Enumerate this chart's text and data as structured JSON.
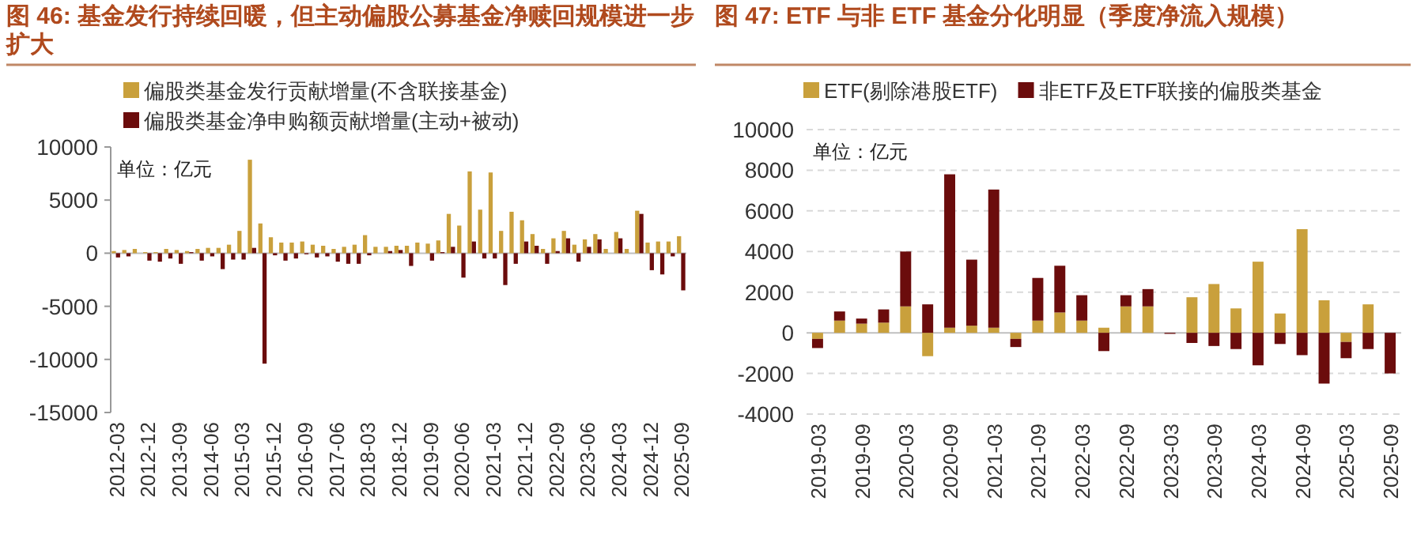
{
  "chart_data": [
    {
      "type": "bar",
      "title": "图 46: 基金发行持续回暖，但主动偏股公募基金净赎回规模进一步扩大",
      "categories": [
        "2012-03",
        null,
        null,
        "2012-12",
        null,
        null,
        "2013-09",
        null,
        null,
        "2014-06",
        null,
        null,
        "2015-03",
        null,
        null,
        "2015-12",
        null,
        null,
        "2016-09",
        null,
        null,
        "2017-06",
        null,
        null,
        "2018-03",
        null,
        null,
        "2018-12",
        null,
        null,
        "2019-09",
        null,
        null,
        "2020-06",
        null,
        null,
        "2021-03",
        null,
        null,
        "2021-12",
        null,
        null,
        "2022-09",
        null,
        null,
        "2023-06",
        null,
        null,
        "2024-03",
        null,
        null,
        "2024-12",
        null,
        null,
        "2025-09"
      ],
      "series": [
        {
          "name": "偏股类基金发行贡献增量(不含联接基金)",
          "color": "#c9a03c",
          "values": [
            200,
            300,
            400,
            100,
            100,
            400,
            300,
            200,
            400,
            500,
            500,
            800,
            2100,
            8800,
            2800,
            1500,
            1000,
            1000,
            1100,
            800,
            700,
            400,
            600,
            800,
            1700,
            600,
            600,
            700,
            700,
            1000,
            900,
            1200,
            3700,
            2600,
            7700,
            4100,
            7600,
            2100,
            3900,
            3100,
            1800,
            400,
            1400,
            2100,
            800,
            1300,
            1800,
            400,
            2000,
            400,
            4000,
            1000,
            1100,
            1100,
            1600
          ]
        },
        {
          "name": "偏股类基金净申购额贡献增量(主动+被动)",
          "color": "#6b0c0c",
          "values": [
            -400,
            -300,
            0,
            -700,
            -800,
            -500,
            -1000,
            100,
            -700,
            -300,
            -1500,
            -600,
            -600,
            500,
            -10400,
            -200,
            -700,
            -500,
            -100,
            -400,
            -300,
            -800,
            -1000,
            -1000,
            -200,
            0,
            200,
            300,
            -1200,
            0,
            -700,
            100,
            600,
            -2300,
            1100,
            -500,
            -500,
            -3000,
            -1000,
            1100,
            700,
            -1000,
            200,
            1400,
            -800,
            600,
            1300,
            0,
            1400,
            0,
            3700,
            -1600,
            -2000,
            -300,
            -3500
          ]
        }
      ],
      "ylim": [
        -15000,
        10000
      ],
      "yticks": [
        -15000,
        -10000,
        -5000,
        0,
        5000,
        10000
      ],
      "legend": "top",
      "annotations": [
        "单位：亿元"
      ]
    },
    {
      "type": "bar",
      "title": "图 47: ETF 与非 ETF 基金分化明显（季度净流入规模）",
      "stacked": true,
      "categories": [
        "2019-03",
        null,
        "2019-09",
        null,
        "2020-03",
        null,
        "2020-09",
        null,
        "2021-03",
        null,
        "2021-09",
        null,
        "2022-03",
        null,
        "2022-09",
        null,
        "2023-03",
        null,
        "2023-09",
        null,
        "2024-03",
        null,
        "2024-09",
        null,
        "2025-03",
        null,
        "2025-09"
      ],
      "series": [
        {
          "name": "ETF(剔除港股ETF)",
          "color": "#c9a03c",
          "values": [
            -300,
            600,
            450,
            500,
            1300,
            -1150,
            250,
            350,
            250,
            -300,
            600,
            1000,
            600,
            250,
            1300,
            1300,
            null,
            1750,
            2400,
            1200,
            3500,
            950,
            5100,
            1600,
            -450,
            1400,
            0
          ]
        },
        {
          "name": "非ETF及ETF联接的偏股类基金",
          "color": "#6b0c0c",
          "values": [
            -450,
            450,
            250,
            650,
            2700,
            1400,
            7550,
            3250,
            6800,
            -400,
            2100,
            2300,
            1250,
            -900,
            550,
            850,
            -50,
            -500,
            -650,
            -800,
            -1600,
            -550,
            -1100,
            -2500,
            -800,
            -800,
            -2000
          ]
        }
      ],
      "ylim": [
        -4000,
        10000
      ],
      "yticks": [
        -4000,
        -2000,
        0,
        2000,
        4000,
        6000,
        8000,
        10000
      ],
      "grid": "y",
      "legend": "top",
      "annotations": [
        "单位：亿元"
      ]
    }
  ]
}
